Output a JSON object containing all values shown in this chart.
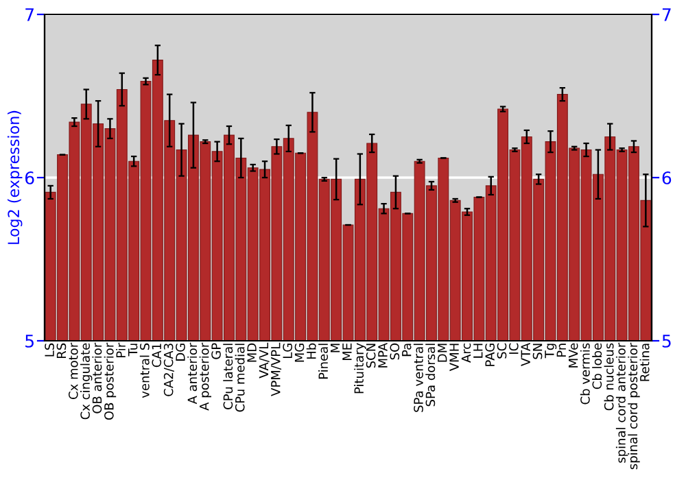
{
  "chart_data": {
    "type": "bar",
    "ylabel": "Log2 (expression)",
    "categories": [
      "LS",
      "RS",
      "Cx motor",
      "Cx cingulate",
      "OB anterior",
      "OB posterior",
      "Pir",
      "Tu",
      "ventral S",
      "CA1",
      "CA2/CA3",
      "DG",
      "A anterior",
      "A posterior",
      "GP",
      "CPu lateral",
      "CPu medial",
      "MD",
      "VA/VL",
      "VPM/VPL",
      "LG",
      "MG",
      "Hb",
      "Pineal",
      "M",
      "ME",
      "Pituitary",
      "SCN",
      "MPA",
      "SO",
      "Pa",
      "SPa ventral",
      "SPa dorsal",
      "DM",
      "VMH",
      "Arc",
      "LH",
      "PAG",
      "SC",
      "IC",
      "VTA",
      "SN",
      "Tg",
      "Pn",
      "MVe",
      "Cb vermis",
      "Cb lobe",
      "Cb nucleus",
      "spinal cord anterior",
      "spinal cord posterior",
      "Retina"
    ],
    "series": [
      {
        "color": "#b22a2a",
        "values": [
          5.91,
          6.14,
          6.34,
          6.45,
          6.33,
          6.3,
          6.54,
          6.1,
          6.59,
          6.72,
          6.35,
          6.17,
          6.26,
          6.22,
          6.16,
          6.26,
          6.12,
          6.06,
          6.05,
          6.19,
          6.24,
          6.15,
          6.4,
          5.99,
          5.99,
          5.71,
          5.99,
          6.21,
          5.81,
          5.91,
          5.78,
          6.1,
          5.95,
          6.12,
          5.86,
          5.79,
          5.88,
          5.95,
          6.42,
          6.17,
          6.25,
          5.99,
          6.22,
          6.51,
          6.18,
          6.17,
          6.02,
          6.25,
          6.17,
          6.19,
          5.86
        ],
        "errors": [
          0.04,
          null,
          0.025,
          0.09,
          0.14,
          0.06,
          0.1,
          0.03,
          0.02,
          0.09,
          0.16,
          0.16,
          0.2,
          0.01,
          0.06,
          0.055,
          0.12,
          0.02,
          0.05,
          0.045,
          0.08,
          null,
          0.12,
          0.01,
          0.125,
          null,
          0.155,
          0.055,
          0.03,
          0.1,
          null,
          0.01,
          0.025,
          null,
          0.01,
          0.02,
          null,
          0.055,
          0.015,
          0.01,
          0.04,
          0.03,
          0.065,
          0.04,
          0.01,
          0.04,
          0.15,
          0.08,
          0.01,
          0.035,
          0.16
        ]
      }
    ],
    "ylim": [
      5,
      7
    ],
    "yticks": [
      5,
      6,
      7
    ],
    "y2lim": [
      5,
      7
    ],
    "y2ticks": [
      5,
      6,
      7
    ],
    "grid": "y"
  }
}
